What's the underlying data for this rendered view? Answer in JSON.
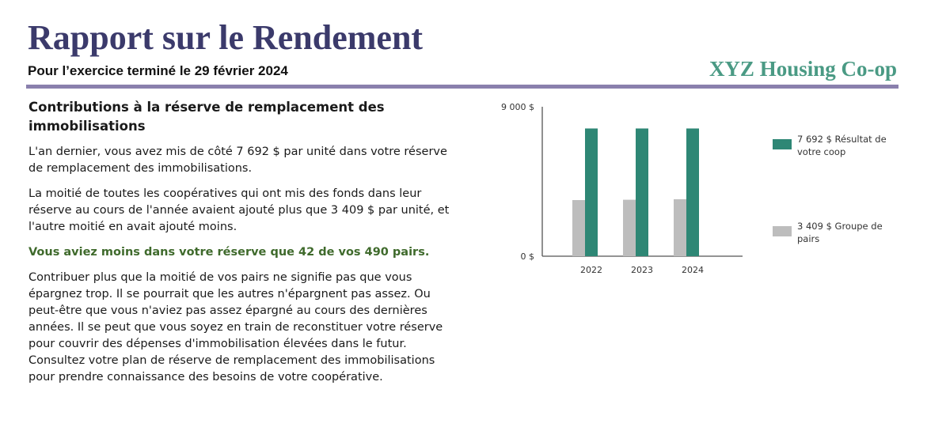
{
  "header": {
    "title": "Rapport sur le Rendement",
    "subtitle": "Pour l’exercice terminé le 29 février 2024",
    "coop_name": "XYZ Housing Co-op"
  },
  "section": {
    "heading": "Contributions à la réserve de remplacement des immobilisations",
    "paragraphs": [
      "L'an dernier, vous avez mis de côté 7 692 $ par unité dans votre réserve de remplacement des immobilisations.",
      "La moitié de toutes les coopératives qui ont mis des fonds dans leur réserve au cours de l'année avaient ajouté plus que 3 409 $ par unité, et l'autre moitié en avait ajouté moins.",
      "Vous aviez moins dans votre réserve que 42 de vos 490 pairs.",
      "Contribuer plus que la moitié de vos pairs ne signifie pas que vous épargnez trop. Il se pourrait que les autres n'épargnent pas assez. Ou peut-être que vous n'aviez pas assez épargné au cours des dernières années. Il se peut que vous soyez en train de reconstituer votre réserve pour couvrir des dépenses d'immobilisation élevées dans le futur. Consultez votre plan de réserve de remplacement des immobilisations pour prendre connaissance des besoins de votre coopérative."
    ]
  },
  "chart_data": {
    "type": "bar",
    "categories": [
      "2022",
      "2023",
      "2024"
    ],
    "series": [
      {
        "name": "3 409 $ Groupe de pairs",
        "values": [
          3380,
          3400,
          3430
        ],
        "color": "#bdbdbd"
      },
      {
        "name": "7 692 $ Résultat de votre coop",
        "values": [
          7692,
          7692,
          7692
        ],
        "color": "#2e8775"
      }
    ],
    "ylim": [
      0,
      9000
    ],
    "ytick_labels": [
      "0 $",
      "9 000 $"
    ],
    "legend": "right"
  }
}
